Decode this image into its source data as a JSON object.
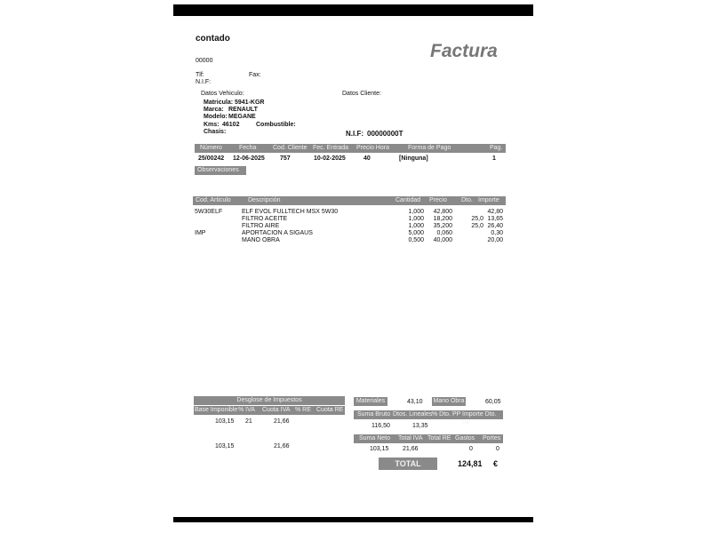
{
  "header": {
    "company": "contado",
    "code": "00000",
    "title": "Factura",
    "tlf_label": "Tlf:",
    "fax_label": "Fax:",
    "nif_label": "N.I.F:"
  },
  "vehicle": {
    "title": "Datos Vehiculo:",
    "matricula_label": "Matricula:",
    "matricula": "5941-KGR",
    "marca_label": "Marca:",
    "marca": "RENAULT",
    "modelo_label": "Modelo:",
    "modelo": "MEGANE",
    "kms_label": "Kms:",
    "kms": "46102",
    "combustible_label": "Combustible:",
    "chasis_label": "Chasis:"
  },
  "client": {
    "title": "Datos Cliente:",
    "nif_label": "N.I.F:",
    "nif": "00000000T"
  },
  "invoice_header": {
    "columns": [
      "Número",
      "Fecha",
      "Cod. Cliente",
      "Fec. Entrada",
      "Precio Hora",
      "Forma de Pago",
      "Pag."
    ],
    "values": [
      "25/00242",
      "12-06-2025",
      "757",
      "10-02-2025",
      "40",
      "[Ninguna]",
      "1"
    ]
  },
  "observaciones_label": "Observaciones",
  "lines": {
    "columns": [
      "Cod. Articulo",
      "Descripción",
      "Cantidad",
      "Precio",
      "Dto.",
      "Importe"
    ],
    "rows": [
      [
        "5W30ELF",
        "ELF EVOL FULLTECH MSX 5W30",
        "1,000",
        "42,800",
        "",
        "42,80"
      ],
      [
        "",
        "FILTRO ACEITE",
        "1,000",
        "18,200",
        "25,0",
        "13,65"
      ],
      [
        "",
        "FILTRO AIRE",
        "1,000",
        "35,200",
        "25,0",
        "26,40"
      ],
      [
        "IMP",
        "APORTACION A SIGAUS",
        "5,000",
        "0,060",
        "",
        "0,30"
      ],
      [
        "",
        "MANO OBRA",
        "0,500",
        "40,000",
        "",
        "20,00"
      ]
    ]
  },
  "taxes": {
    "title": "Desglose de Impuestos",
    "columns": [
      "Base Imponible",
      "% IVA",
      "Cuota IVA",
      "% RE",
      "Cuota RE"
    ],
    "row": [
      "103,15",
      "21",
      "21,66",
      "",
      ""
    ],
    "totals": [
      "103,15",
      "",
      "21,66",
      "",
      ""
    ]
  },
  "summary": {
    "materiales_label": "Materiales",
    "materiales": "43,10",
    "mano_obra_label": "Mano Obra",
    "mano_obra": "60,05",
    "row1_columns": [
      "Suma Bruto",
      "Dtos. Lineales",
      "% Dto. PP",
      "Importe Dto. PP"
    ],
    "row1_values": [
      "116,50",
      "13,35",
      "",
      ""
    ],
    "row2_columns": [
      "Suma Neto",
      "Total IVA",
      "Total RE",
      "Gastos",
      "Portes"
    ],
    "row2_values": [
      "103,15",
      "21,66",
      "",
      "0",
      "0"
    ],
    "total_label": "TOTAL",
    "total": "124,81",
    "currency": "€"
  },
  "colors": {
    "header_gray": "#8a8a8a"
  }
}
